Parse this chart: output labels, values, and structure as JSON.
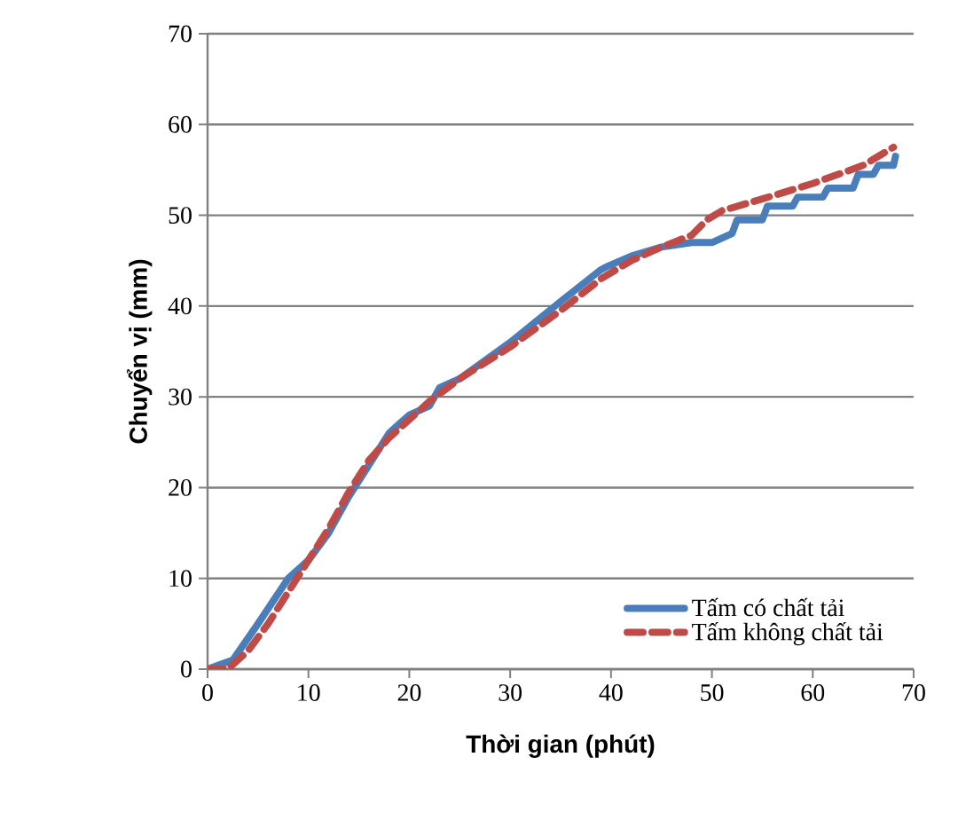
{
  "chart_data": {
    "type": "line",
    "xlabel": "Thời gian (phút)",
    "ylabel": "Chuyển vị (mm)",
    "xlim": [
      0,
      70
    ],
    "ylim": [
      0,
      70
    ],
    "xticks": [
      0,
      10,
      20,
      30,
      40,
      50,
      60,
      70
    ],
    "yticks": [
      0,
      10,
      20,
      30,
      40,
      50,
      60,
      70
    ],
    "grid": "y",
    "legend": "bottom right",
    "series": [
      {
        "name": "Tấm có chất tải",
        "color": "#4a7ebb",
        "line_style": "solid",
        "x": [
          0,
          2.5,
          5,
          8,
          10,
          12,
          14,
          16,
          18,
          19,
          20,
          22,
          23,
          25,
          30,
          35,
          39,
          39.5,
          42,
          45,
          48,
          50,
          52,
          52.5,
          55,
          55.5,
          58,
          58.5,
          61,
          61.5,
          64,
          64.5,
          66,
          66.5,
          68,
          68.2
        ],
        "values": [
          0,
          1,
          5,
          10,
          12,
          15,
          19,
          22.5,
          26,
          27,
          28,
          29,
          31,
          32,
          36,
          40.5,
          44,
          44.3,
          45.5,
          46.5,
          47,
          47,
          48,
          49.5,
          49.5,
          51,
          51,
          52,
          52,
          53,
          53,
          54.5,
          54.5,
          55.5,
          55.5,
          56.5
        ]
      },
      {
        "name": "Tấm không chất tải",
        "color": "#be4b48",
        "line_style": "dashed",
        "x": [
          0,
          2,
          4,
          6,
          8,
          10,
          12,
          14,
          16,
          18,
          20,
          22,
          25,
          30,
          35,
          39,
          42,
          45,
          48,
          49.5,
          51,
          55,
          60,
          65,
          68
        ],
        "values": [
          0,
          0,
          2,
          5,
          8.5,
          12,
          15.5,
          19.5,
          23,
          25.5,
          27.5,
          29.5,
          32,
          35.5,
          39.5,
          43,
          45,
          46.5,
          47.8,
          49.5,
          50.5,
          51.8,
          53.5,
          55.5,
          57.5
        ]
      }
    ]
  }
}
